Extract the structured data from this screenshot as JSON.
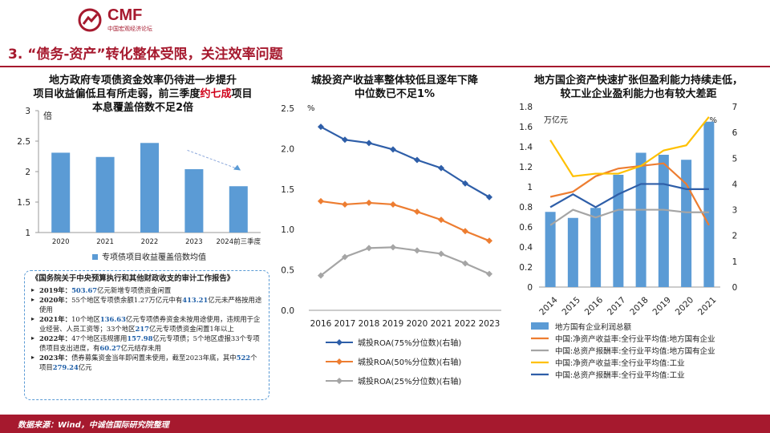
{
  "header": {
    "logo_text": "CMF",
    "logo_sub": "中国宏观经济论坛",
    "section_title": "3. “债务-资产”转化整体受限，关注效率问题"
  },
  "footer": {
    "source": "数据来源：Wind，中诚信国际研究院整理"
  },
  "notes": {
    "title": "《国务院关于中央预算执行和其他财政收支的审计工作报告》",
    "items": [
      {
        "year": "2019年：",
        "parts": [
          {
            "n": "503.67"
          },
          {
            "t": "亿元新增专项债资金闲置"
          }
        ]
      },
      {
        "year": "2020年：",
        "parts": [
          {
            "t": "55个地区专项债余额1.27万亿元中有"
          },
          {
            "n": "413.21"
          },
          {
            "t": "亿元未严格按用途使用"
          }
        ]
      },
      {
        "year": "2021年：",
        "parts": [
          {
            "t": "10个地区"
          },
          {
            "n": "136.63"
          },
          {
            "t": "亿元专项债券资金未按用途使用，违规用于企业经营、人员工资等；33个地区"
          },
          {
            "n": "217"
          },
          {
            "t": "亿元专项债资金闲置1年以上"
          }
        ]
      },
      {
        "year": "2022年：",
        "parts": [
          {
            "t": "47个地区违规挪用"
          },
          {
            "n": "157.98"
          },
          {
            "t": "亿元专项债；5个地区虚报33个专项债项目支出进度，有"
          },
          {
            "n": "60.27"
          },
          {
            "t": "亿元结存未用"
          }
        ]
      },
      {
        "year": "2023年：",
        "parts": [
          {
            "t": "债券募集资金当年即闲置未使用，截至2023年底，其中"
          },
          {
            "n": "522"
          },
          {
            "t": "个项目"
          },
          {
            "n": "279.24"
          },
          {
            "t": "亿元"
          }
        ]
      }
    ]
  },
  "chart_data": [
    {
      "type": "bar",
      "title_lines": [
        "地方政府专项债资金效率仍待进一步提升",
        "项目收益偏低且有所走弱，前三季度",
        "约七成",
        "项目",
        "本息覆盖倍数不足2倍"
      ],
      "categories": [
        "2020",
        "2021",
        "2022",
        "2023",
        "2024前三季度"
      ],
      "series": [
        {
          "name": "专项债项目收益覆盖倍数均值",
          "values": [
            2.31,
            2.24,
            2.47,
            2.04,
            1.76
          ],
          "color": "#5b9bd5"
        }
      ],
      "ylabel": "倍",
      "ylim": [
        1,
        3
      ],
      "yticks": [
        "1",
        "1.5",
        "2",
        "2.5",
        "3"
      ],
      "annotation": "downtrend-arrow"
    },
    {
      "type": "line",
      "title_lines": [
        "城投资产收益率整体较低且逐年下降",
        "中位数已不足1%"
      ],
      "x": [
        "2016",
        "2017",
        "2018",
        "2019",
        "2020",
        "2021",
        "2022",
        "2023"
      ],
      "ylabel": "%",
      "ylim": [
        0,
        2.5
      ],
      "yticks": [
        "0.0",
        "0.5",
        "1.0",
        "1.5",
        "2.0",
        "2.5"
      ],
      "series": [
        {
          "name": "城投ROA(75%分位数)(右轴)",
          "values": [
            2.27,
            2.11,
            2.07,
            1.99,
            1.86,
            1.76,
            1.57,
            1.4
          ],
          "color": "#2e5ea8"
        },
        {
          "name": "城投ROA(50%分位数)(右轴)",
          "values": [
            1.35,
            1.31,
            1.33,
            1.31,
            1.22,
            1.12,
            0.98,
            0.86
          ],
          "color": "#ed7d31"
        },
        {
          "name": "城投ROA(25%分位数)(右轴)",
          "values": [
            0.43,
            0.66,
            0.77,
            0.78,
            0.74,
            0.7,
            0.58,
            0.45
          ],
          "color": "#a5a5a5"
        }
      ]
    },
    {
      "type": "bar-line",
      "title_lines": [
        "地方国企资产快速扩张但盈利能力持续走低，",
        "较工业企业盈利能力也有较大差距"
      ],
      "x": [
        "2014",
        "2015",
        "2016",
        "2017",
        "2018",
        "2019",
        "2020",
        "2021"
      ],
      "ylabel_left": "万亿元",
      "ylabel_right": "%",
      "ylim_left": [
        0,
        1.8
      ],
      "ylim_right": [
        0,
        7
      ],
      "yticks_left": [
        "0",
        "0.2",
        "0.4",
        "0.6",
        "0.8",
        "1",
        "1.2",
        "1.4",
        "1.6",
        "1.8"
      ],
      "yticks_right": [
        "0",
        "1",
        "2",
        "3",
        "4",
        "5",
        "6",
        "7"
      ],
      "bars": {
        "name": "地方国有企业利润总额",
        "values": [
          0.75,
          0.69,
          0.79,
          1.12,
          1.34,
          1.32,
          1.27,
          1.65
        ],
        "color": "#5b9bd5"
      },
      "series": [
        {
          "name": "中国:净资产收益率:全行业平均值:地方国有企业",
          "values": [
            3.5,
            3.7,
            4.3,
            4.6,
            4.7,
            4.8,
            4.0,
            2.4
          ],
          "color": "#ed7d31"
        },
        {
          "name": "中国:总资产报酬率:全行业平均值:地方国有企业",
          "values": [
            2.4,
            3.0,
            2.7,
            3.0,
            3.0,
            3.0,
            2.9,
            2.9
          ],
          "color": "#a5a5a5"
        },
        {
          "name": "中国:净资产收益率:全行业平均值:工业",
          "values": [
            5.7,
            4.3,
            4.4,
            4.4,
            4.7,
            5.3,
            5.5,
            6.6
          ],
          "color": "#ffc000"
        },
        {
          "name": "中国:总资产报酬率:全行业平均值:工业",
          "values": [
            3.1,
            3.6,
            3.1,
            3.6,
            4.0,
            4.0,
            3.8,
            3.8
          ],
          "color": "#2e5ea8"
        }
      ]
    }
  ]
}
